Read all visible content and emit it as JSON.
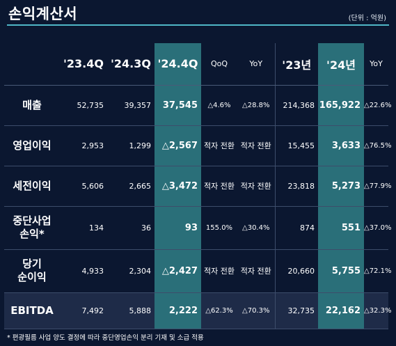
{
  "title": "손익계산서",
  "unit": "(단위 : 억원)",
  "columns": [
    "'23.4Q",
    "'24.3Q",
    "'24.4Q",
    "QoQ",
    "YoY",
    "'23년",
    "'24년",
    "YoY"
  ],
  "rows": [
    {
      "label": [
        "매출"
      ],
      "cells": [
        "52,735",
        "39,357",
        "37,545",
        "△4.6%",
        "△28.8%",
        "214,368",
        "165,922",
        "△22.6%"
      ]
    },
    {
      "label": [
        "영업이익"
      ],
      "cells": [
        "2,953",
        "1,299",
        "△2,567",
        "적자\n전환",
        "적자\n전환",
        "15,455",
        "3,633",
        "△76.5%"
      ]
    },
    {
      "label": [
        "세전이익"
      ],
      "cells": [
        "5,606",
        "2,665",
        "△3,472",
        "적자\n전환",
        "적자\n전환",
        "23,818",
        "5,273",
        "△77.9%"
      ]
    },
    {
      "label": [
        "중단사업",
        "손익*"
      ],
      "cells": [
        "134",
        "36",
        "93",
        "155.0%",
        "△30.4%",
        "874",
        "551",
        "△37.0%"
      ]
    },
    {
      "label": [
        "당기",
        "순이익"
      ],
      "cells": [
        "4,933",
        "2,304",
        "△2,427",
        "적자\n전환",
        "적자\n전환",
        "20,660",
        "5,755",
        "△72.1%"
      ]
    },
    {
      "label": [
        "EBITDA"
      ],
      "cells": [
        "7,492",
        "5,888",
        "2,222",
        "△62.3%",
        "△70.3%",
        "32,735",
        "22,162",
        "△32.3%"
      ]
    }
  ],
  "footnote": "* 편광필름 사업 양도 결정에 따라 중단영업손익 분리 기재 및 소급 적용",
  "colors": {
    "background": "#0b1730",
    "highlight": "#2a6f79",
    "accent_rule": "#4fb7c7"
  }
}
